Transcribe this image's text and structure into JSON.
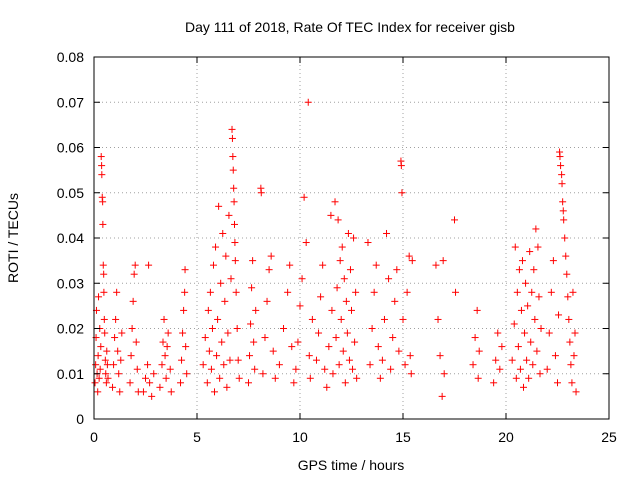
{
  "chart_data": {
    "type": "scatter",
    "title": "Day 111 of 2018, Rate Of TEC Index for receiver gisb",
    "xlabel": "GPS time / hours",
    "ylabel": "ROTI / TECUs",
    "xlim": [
      0,
      25
    ],
    "ylim": [
      0,
      0.08
    ],
    "xticks": [
      0,
      5,
      10,
      15,
      20,
      25
    ],
    "xtick_labels": [
      "0",
      "5",
      "10",
      "15",
      "20",
      "25"
    ],
    "yticks": [
      0,
      0.01,
      0.02,
      0.03,
      0.04,
      0.05,
      0.06,
      0.07,
      0.08
    ],
    "ytick_labels": [
      "0",
      "0.01",
      "0.02",
      "0.03",
      "0.04",
      "0.05",
      "0.06",
      "0.07",
      "0.08"
    ],
    "grid": true,
    "marker": "+",
    "color": "#ff0000",
    "series": [
      {
        "name": "ROTI",
        "points": [
          [
            0.05,
            0.008
          ],
          [
            0.08,
            0.012
          ],
          [
            0.1,
            0.018
          ],
          [
            0.12,
            0.024
          ],
          [
            0.15,
            0.01
          ],
          [
            0.18,
            0.006
          ],
          [
            0.2,
            0.014
          ],
          [
            0.22,
            0.027
          ],
          [
            0.25,
            0.009
          ],
          [
            0.28,
            0.02
          ],
          [
            0.3,
            0.011
          ],
          [
            0.33,
            0.016
          ],
          [
            0.35,
            0.058
          ],
          [
            0.37,
            0.056
          ],
          [
            0.38,
            0.054
          ],
          [
            0.4,
            0.049
          ],
          [
            0.42,
            0.048
          ],
          [
            0.43,
            0.043
          ],
          [
            0.45,
            0.034
          ],
          [
            0.47,
            0.032
          ],
          [
            0.48,
            0.028
          ],
          [
            0.5,
            0.022
          ],
          [
            0.52,
            0.019
          ],
          [
            0.55,
            0.013
          ],
          [
            0.57,
            0.01
          ],
          [
            0.6,
            0.008
          ],
          [
            0.62,
            0.015
          ],
          [
            0.65,
            0.012
          ],
          [
            0.68,
            0.009
          ],
          [
            0.9,
            0.007
          ],
          [
            0.95,
            0.012
          ],
          [
            1.0,
            0.018
          ],
          [
            1.05,
            0.022
          ],
          [
            1.1,
            0.028
          ],
          [
            1.15,
            0.015
          ],
          [
            1.2,
            0.01
          ],
          [
            1.25,
            0.006
          ],
          [
            1.3,
            0.013
          ],
          [
            1.35,
            0.019
          ],
          [
            1.75,
            0.008
          ],
          [
            1.8,
            0.014
          ],
          [
            1.85,
            0.02
          ],
          [
            1.9,
            0.026
          ],
          [
            1.95,
            0.032
          ],
          [
            2.0,
            0.034
          ],
          [
            2.05,
            0.017
          ],
          [
            2.1,
            0.011
          ],
          [
            2.15,
            0.006
          ],
          [
            2.4,
            0.006
          ],
          [
            2.5,
            0.009
          ],
          [
            2.6,
            0.012
          ],
          [
            2.65,
            0.034
          ],
          [
            2.7,
            0.008
          ],
          [
            2.8,
            0.005
          ],
          [
            2.9,
            0.01
          ],
          [
            3.2,
            0.007
          ],
          [
            3.3,
            0.012
          ],
          [
            3.35,
            0.017
          ],
          [
            3.4,
            0.022
          ],
          [
            3.45,
            0.014
          ],
          [
            3.5,
            0.009
          ],
          [
            3.55,
            0.016
          ],
          [
            3.6,
            0.019
          ],
          [
            3.7,
            0.011
          ],
          [
            3.75,
            0.006
          ],
          [
            4.2,
            0.008
          ],
          [
            4.25,
            0.013
          ],
          [
            4.3,
            0.019
          ],
          [
            4.35,
            0.024
          ],
          [
            4.4,
            0.028
          ],
          [
            4.42,
            0.033
          ],
          [
            4.45,
            0.016
          ],
          [
            4.5,
            0.01
          ],
          [
            5.3,
            0.012
          ],
          [
            5.4,
            0.018
          ],
          [
            5.5,
            0.008
          ],
          [
            5.55,
            0.024
          ],
          [
            5.6,
            0.015
          ],
          [
            5.65,
            0.028
          ],
          [
            5.7,
            0.011
          ],
          [
            5.75,
            0.02
          ],
          [
            5.8,
            0.034
          ],
          [
            5.85,
            0.006
          ],
          [
            5.9,
            0.038
          ],
          [
            5.95,
            0.014
          ],
          [
            6.0,
            0.022
          ],
          [
            6.05,
            0.047
          ],
          [
            6.1,
            0.009
          ],
          [
            6.15,
            0.03
          ],
          [
            6.2,
            0.017
          ],
          [
            6.25,
            0.041
          ],
          [
            6.3,
            0.012
          ],
          [
            6.35,
            0.026
          ],
          [
            6.4,
            0.036
          ],
          [
            6.45,
            0.007
          ],
          [
            6.5,
            0.019
          ],
          [
            6.55,
            0.045
          ],
          [
            6.6,
            0.013
          ],
          [
            6.65,
            0.031
          ],
          [
            6.7,
            0.064
          ],
          [
            6.72,
            0.062
          ],
          [
            6.74,
            0.058
          ],
          [
            6.76,
            0.055
          ],
          [
            6.78,
            0.051
          ],
          [
            6.8,
            0.048
          ],
          [
            6.82,
            0.043
          ],
          [
            6.84,
            0.039
          ],
          [
            6.86,
            0.035
          ],
          [
            6.9,
            0.028
          ],
          [
            6.95,
            0.02
          ],
          [
            7.0,
            0.013
          ],
          [
            7.05,
            0.009
          ],
          [
            7.5,
            0.008
          ],
          [
            7.55,
            0.014
          ],
          [
            7.6,
            0.021
          ],
          [
            7.65,
            0.029
          ],
          [
            7.7,
            0.035
          ],
          [
            7.75,
            0.017
          ],
          [
            7.8,
            0.011
          ],
          [
            7.85,
            0.024
          ],
          [
            8.1,
            0.051
          ],
          [
            8.12,
            0.05
          ],
          [
            8.2,
            0.01
          ],
          [
            8.3,
            0.018
          ],
          [
            8.4,
            0.026
          ],
          [
            8.5,
            0.033
          ],
          [
            8.6,
            0.036
          ],
          [
            8.7,
            0.015
          ],
          [
            8.8,
            0.009
          ],
          [
            9.0,
            0.012
          ],
          [
            9.2,
            0.02
          ],
          [
            9.4,
            0.028
          ],
          [
            9.5,
            0.034
          ],
          [
            9.6,
            0.016
          ],
          [
            9.7,
            0.008
          ],
          [
            9.8,
            0.011
          ],
          [
            9.9,
            0.017
          ],
          [
            10.0,
            0.025
          ],
          [
            10.1,
            0.031
          ],
          [
            10.2,
            0.049
          ],
          [
            10.3,
            0.039
          ],
          [
            10.4,
            0.07
          ],
          [
            10.45,
            0.014
          ],
          [
            10.5,
            0.009
          ],
          [
            10.6,
            0.022
          ],
          [
            10.8,
            0.013
          ],
          [
            10.9,
            0.019
          ],
          [
            11.0,
            0.027
          ],
          [
            11.1,
            0.034
          ],
          [
            11.2,
            0.011
          ],
          [
            11.3,
            0.007
          ],
          [
            11.4,
            0.016
          ],
          [
            11.5,
            0.045
          ],
          [
            11.55,
            0.024
          ],
          [
            11.6,
            0.01
          ],
          [
            11.7,
            0.048
          ],
          [
            11.75,
            0.018
          ],
          [
            11.8,
            0.029
          ],
          [
            11.85,
            0.044
          ],
          [
            11.9,
            0.012
          ],
          [
            11.95,
            0.035
          ],
          [
            12.0,
            0.022
          ],
          [
            12.05,
            0.038
          ],
          [
            12.1,
            0.015
          ],
          [
            12.15,
            0.031
          ],
          [
            12.2,
            0.008
          ],
          [
            12.25,
            0.026
          ],
          [
            12.3,
            0.019
          ],
          [
            12.35,
            0.041
          ],
          [
            12.4,
            0.013
          ],
          [
            12.45,
            0.033
          ],
          [
            12.5,
            0.024
          ],
          [
            12.55,
            0.011
          ],
          [
            12.6,
            0.04
          ],
          [
            12.65,
            0.017
          ],
          [
            12.7,
            0.028
          ],
          [
            12.75,
            0.009
          ],
          [
            13.3,
            0.039
          ],
          [
            13.4,
            0.012
          ],
          [
            13.5,
            0.02
          ],
          [
            13.6,
            0.028
          ],
          [
            13.7,
            0.034
          ],
          [
            13.8,
            0.016
          ],
          [
            13.9,
            0.009
          ],
          [
            14.0,
            0.013
          ],
          [
            14.1,
            0.022
          ],
          [
            14.2,
            0.041
          ],
          [
            14.3,
            0.031
          ],
          [
            14.4,
            0.011
          ],
          [
            14.5,
            0.018
          ],
          [
            14.6,
            0.026
          ],
          [
            14.7,
            0.033
          ],
          [
            14.8,
            0.015
          ],
          [
            14.9,
            0.057
          ],
          [
            14.92,
            0.056
          ],
          [
            14.95,
            0.05
          ],
          [
            15.0,
            0.022
          ],
          [
            15.1,
            0.012
          ],
          [
            15.2,
            0.028
          ],
          [
            15.3,
            0.036
          ],
          [
            15.35,
            0.014
          ],
          [
            15.4,
            0.01
          ],
          [
            15.45,
            0.035
          ],
          [
            16.6,
            0.034
          ],
          [
            16.7,
            0.022
          ],
          [
            16.8,
            0.014
          ],
          [
            16.9,
            0.005
          ],
          [
            16.95,
            0.035
          ],
          [
            17.0,
            0.01
          ],
          [
            17.5,
            0.044
          ],
          [
            17.55,
            0.028
          ],
          [
            18.4,
            0.012
          ],
          [
            18.5,
            0.018
          ],
          [
            18.6,
            0.024
          ],
          [
            18.65,
            0.009
          ],
          [
            18.7,
            0.015
          ],
          [
            19.4,
            0.008
          ],
          [
            19.5,
            0.013
          ],
          [
            19.6,
            0.019
          ],
          [
            19.7,
            0.011
          ],
          [
            19.8,
            0.016
          ],
          [
            20.3,
            0.013
          ],
          [
            20.4,
            0.021
          ],
          [
            20.45,
            0.038
          ],
          [
            20.5,
            0.009
          ],
          [
            20.55,
            0.028
          ],
          [
            20.6,
            0.016
          ],
          [
            20.65,
            0.033
          ],
          [
            20.7,
            0.011
          ],
          [
            20.75,
            0.024
          ],
          [
            20.8,
            0.035
          ],
          [
            20.85,
            0.007
          ],
          [
            20.9,
            0.019
          ],
          [
            20.95,
            0.03
          ],
          [
            21.0,
            0.013
          ],
          [
            21.05,
            0.025
          ],
          [
            21.1,
            0.009
          ],
          [
            21.15,
            0.037
          ],
          [
            21.2,
            0.017
          ],
          [
            21.25,
            0.028
          ],
          [
            21.3,
            0.012
          ],
          [
            21.35,
            0.033
          ],
          [
            21.4,
            0.022
          ],
          [
            21.45,
            0.042
          ],
          [
            21.5,
            0.015
          ],
          [
            21.55,
            0.038
          ],
          [
            21.6,
            0.027
          ],
          [
            21.65,
            0.01
          ],
          [
            21.7,
            0.02
          ],
          [
            22.0,
            0.011
          ],
          [
            22.1,
            0.019
          ],
          [
            22.2,
            0.028
          ],
          [
            22.3,
            0.035
          ],
          [
            22.4,
            0.014
          ],
          [
            22.5,
            0.008
          ],
          [
            22.55,
            0.023
          ],
          [
            22.6,
            0.059
          ],
          [
            22.62,
            0.058
          ],
          [
            22.65,
            0.056
          ],
          [
            22.7,
            0.054
          ],
          [
            22.72,
            0.052
          ],
          [
            22.75,
            0.048
          ],
          [
            22.78,
            0.046
          ],
          [
            22.8,
            0.044
          ],
          [
            22.85,
            0.04
          ],
          [
            22.9,
            0.036
          ],
          [
            22.95,
            0.032
          ],
          [
            23.0,
            0.027
          ],
          [
            23.05,
            0.022
          ],
          [
            23.1,
            0.017
          ],
          [
            23.15,
            0.012
          ],
          [
            23.2,
            0.008
          ],
          [
            23.25,
            0.028
          ],
          [
            23.3,
            0.014
          ],
          [
            23.35,
            0.019
          ],
          [
            23.4,
            0.006
          ]
        ]
      }
    ]
  }
}
